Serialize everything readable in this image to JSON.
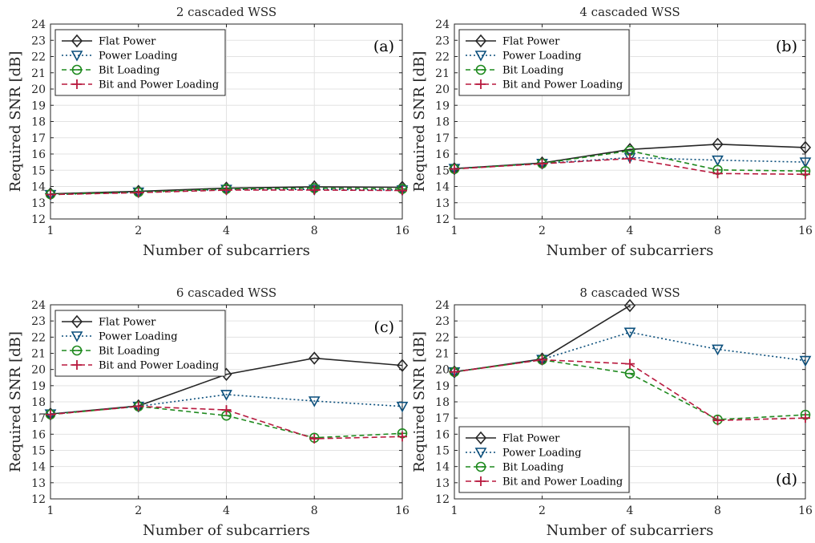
{
  "colors": {
    "flat": "#262626",
    "power": "#0b4f7c",
    "bit": "#1f8a1f",
    "bitpower": "#b8193e"
  },
  "chart_data": [
    {
      "type": "line",
      "title": "2 cascaded WSS",
      "panel_label": "(a)",
      "xlabel": "Number of subcarriers",
      "ylabel": "Required SNR [dB]",
      "categories": [
        "1",
        "2",
        "4",
        "8",
        "16"
      ],
      "ylim": [
        12,
        24
      ],
      "yticks": [
        "12",
        "13",
        "14",
        "15",
        "16",
        "17",
        "18",
        "19",
        "20",
        "21",
        "22",
        "23",
        "24"
      ],
      "grid": true,
      "legend_position": "top-left",
      "series": [
        {
          "name": "Flat Power",
          "style": "flat",
          "values": [
            13.55,
            13.7,
            13.9,
            13.98,
            13.95
          ]
        },
        {
          "name": "Power Loading",
          "style": "power",
          "values": [
            13.5,
            13.65,
            13.82,
            13.82,
            13.78
          ]
        },
        {
          "name": "Bit Loading",
          "style": "bit",
          "values": [
            13.52,
            13.65,
            13.85,
            13.9,
            13.85
          ]
        },
        {
          "name": "Bit and Power Loading",
          "style": "bitpower",
          "values": [
            13.5,
            13.62,
            13.78,
            13.78,
            13.75
          ]
        }
      ]
    },
    {
      "type": "line",
      "title": "4 cascaded WSS",
      "panel_label": "(b)",
      "xlabel": "Number of subcarriers",
      "ylabel": "Required SNR [dB]",
      "categories": [
        "1",
        "2",
        "4",
        "8",
        "16"
      ],
      "ylim": [
        12,
        24
      ],
      "yticks": [
        "12",
        "13",
        "14",
        "15",
        "16",
        "17",
        "18",
        "19",
        "20",
        "21",
        "22",
        "23",
        "24"
      ],
      "grid": true,
      "legend_position": "top-left",
      "series": [
        {
          "name": "Flat Power",
          "style": "flat",
          "values": [
            15.1,
            15.45,
            16.28,
            16.6,
            16.4
          ]
        },
        {
          "name": "Power Loading",
          "style": "power",
          "values": [
            15.1,
            15.42,
            15.78,
            15.62,
            15.5
          ]
        },
        {
          "name": "Bit Loading",
          "style": "bit",
          "values": [
            15.08,
            15.42,
            16.2,
            15.02,
            14.95
          ]
        },
        {
          "name": "Bit and Power Loading",
          "style": "bitpower",
          "values": [
            15.08,
            15.4,
            15.72,
            14.8,
            14.75
          ]
        }
      ]
    },
    {
      "type": "line",
      "title": "6 cascaded WSS",
      "panel_label": "(c)",
      "xlabel": "Number of subcarriers",
      "ylabel": "Required SNR [dB]",
      "categories": [
        "1",
        "2",
        "4",
        "8",
        "16"
      ],
      "ylim": [
        12,
        24
      ],
      "yticks": [
        "12",
        "13",
        "14",
        "15",
        "16",
        "17",
        "18",
        "19",
        "20",
        "21",
        "22",
        "23",
        "24"
      ],
      "grid": true,
      "legend_position": "top-left",
      "series": [
        {
          "name": "Flat Power",
          "style": "flat",
          "values": [
            17.25,
            17.75,
            19.7,
            20.7,
            20.25
          ]
        },
        {
          "name": "Power Loading",
          "style": "power",
          "values": [
            17.25,
            17.72,
            18.45,
            18.05,
            17.72
          ]
        },
        {
          "name": "Bit Loading",
          "style": "bit",
          "values": [
            17.22,
            17.72,
            17.15,
            15.78,
            16.05
          ]
        },
        {
          "name": "Bit and Power Loading",
          "style": "bitpower",
          "values": [
            17.22,
            17.72,
            17.5,
            15.72,
            15.85
          ]
        }
      ]
    },
    {
      "type": "line",
      "title": "8 cascaded WSS",
      "panel_label": "(d)",
      "xlabel": "Number of subcarriers",
      "ylabel": "Required SNR [dB]",
      "categories": [
        "1",
        "2",
        "4",
        "8",
        "16"
      ],
      "ylim": [
        12,
        24
      ],
      "yticks": [
        "12",
        "13",
        "14",
        "15",
        "16",
        "17",
        "18",
        "19",
        "20",
        "21",
        "22",
        "23",
        "24"
      ],
      "grid": true,
      "legend_position": "bottom-left",
      "series": [
        {
          "name": "Flat Power",
          "style": "flat",
          "values": [
            19.85,
            20.65,
            23.95,
            null,
            null
          ]
        },
        {
          "name": "Power Loading",
          "style": "power",
          "values": [
            19.85,
            20.62,
            22.3,
            21.25,
            20.55
          ]
        },
        {
          "name": "Bit Loading",
          "style": "bit",
          "values": [
            19.85,
            20.6,
            19.75,
            16.9,
            17.2
          ]
        },
        {
          "name": "Bit and Power Loading",
          "style": "bitpower",
          "values": [
            19.85,
            20.6,
            20.35,
            16.85,
            17.0
          ]
        }
      ]
    }
  ]
}
